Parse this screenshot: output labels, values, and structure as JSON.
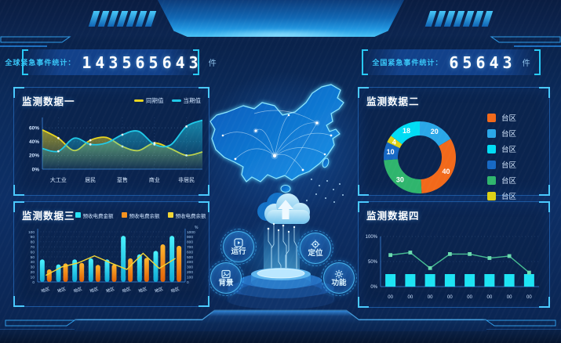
{
  "header": {
    "left_stat": {
      "label": "全球紧急事件统计：",
      "value": "143565643",
      "unit": "件"
    },
    "right_stat": {
      "label": "全国紧急事件统计：",
      "value": "65643",
      "unit": "件"
    }
  },
  "center_buttons": [
    {
      "label": "运行",
      "icon": "run-icon"
    },
    {
      "label": "定位",
      "icon": "locate-icon"
    },
    {
      "label": "背景",
      "icon": "background-icon"
    },
    {
      "label": "功能",
      "icon": "function-icon"
    }
  ],
  "colors": {
    "accent_cyan": "#2bd8ff",
    "panel_border": "#1c57a0",
    "background": "#0b2a5a"
  },
  "chart_data": [
    {
      "id": "monitor1",
      "type": "area",
      "title": "监测数据一",
      "categories": [
        "大工业",
        "居民",
        "趸售",
        "商业",
        "非居民"
      ],
      "category_sample_indices": [
        1,
        3,
        5,
        7,
        9
      ],
      "series": [
        {
          "name": "同期值",
          "color": "#e9d51f",
          "values": [
            57,
            45,
            27,
            42,
            46,
            33,
            27,
            38,
            30,
            20,
            25
          ]
        },
        {
          "name": "当期值",
          "color": "#1fc9e8",
          "values": [
            30,
            26,
            45,
            36,
            38,
            50,
            55,
            36,
            35,
            62,
            71
          ]
        }
      ],
      "yticks": [
        0,
        20,
        40,
        60
      ],
      "ytick_suffix": "%",
      "ylim": [
        0,
        75
      ],
      "legend_position": "top-right",
      "grid": true
    },
    {
      "id": "monitor2",
      "type": "pie",
      "title": "监测数据二",
      "values": [
        20,
        40,
        30,
        10,
        4,
        18
      ],
      "labels": [
        "20",
        "40",
        "30",
        "10",
        "4",
        "18"
      ],
      "colors": [
        "#2aa7e8",
        "#f2691a",
        "#2fb56d",
        "#1668c4",
        "#ddd016",
        "#00dcf4"
      ],
      "start_angle": -90,
      "clockwise": true,
      "inner_radius_ratio": 0.61,
      "legend": [
        {
          "label": "台区",
          "color": "#f2691a"
        },
        {
          "label": "台区",
          "color": "#2aa7e8"
        },
        {
          "label": "台区",
          "color": "#00dcf4"
        },
        {
          "label": "台区",
          "color": "#1668c4"
        },
        {
          "label": "台区",
          "color": "#2fb56d"
        },
        {
          "label": "台区",
          "color": "#ddd016"
        }
      ],
      "legend_position": "right"
    },
    {
      "id": "monitor3",
      "type": "bar",
      "title": "监测数据三",
      "categories": [
        "地区",
        "地区",
        "地区",
        "地区",
        "地区",
        "地区",
        "地区",
        "地区",
        "地区"
      ],
      "series": [
        {
          "name": "预收电费金额",
          "type": "bar",
          "color": "#27e3f5",
          "values": [
            45,
            35,
            45,
            47,
            45,
            92,
            55,
            62,
            92
          ]
        },
        {
          "name": "预收电费余额",
          "type": "bar",
          "color": "#f5911e",
          "values": [
            25,
            37,
            38,
            34,
            35,
            47,
            48,
            75,
            72
          ]
        },
        {
          "name": "预收电费余额",
          "type": "line",
          "color": "#f2d534",
          "values": [
            13,
            30,
            38,
            52,
            38,
            25,
            57,
            27,
            47
          ]
        }
      ],
      "ylim_left": [
        0,
        100
      ],
      "ytick_step_left": 10,
      "ylim_right": [
        0,
        1000
      ],
      "ytick_step_right": 100,
      "right_axis_unit": "%",
      "grid": true
    },
    {
      "id": "monitor4",
      "type": "line",
      "title": "监测数据四",
      "categories": [
        "00",
        "00",
        "00",
        "00",
        "00",
        "00",
        "00",
        "00"
      ],
      "bars": {
        "color": "#1de4f4",
        "values": [
          25,
          25,
          25,
          25,
          25,
          25,
          25,
          25
        ]
      },
      "line": {
        "color": "#46bd92",
        "marker_color": "#6adbae",
        "values": [
          63,
          68,
          37,
          65,
          65,
          57,
          61,
          28
        ]
      },
      "yticks": [
        "0%",
        "50%",
        "100%"
      ],
      "ylim": [
        0,
        100
      ],
      "grid": true
    }
  ]
}
